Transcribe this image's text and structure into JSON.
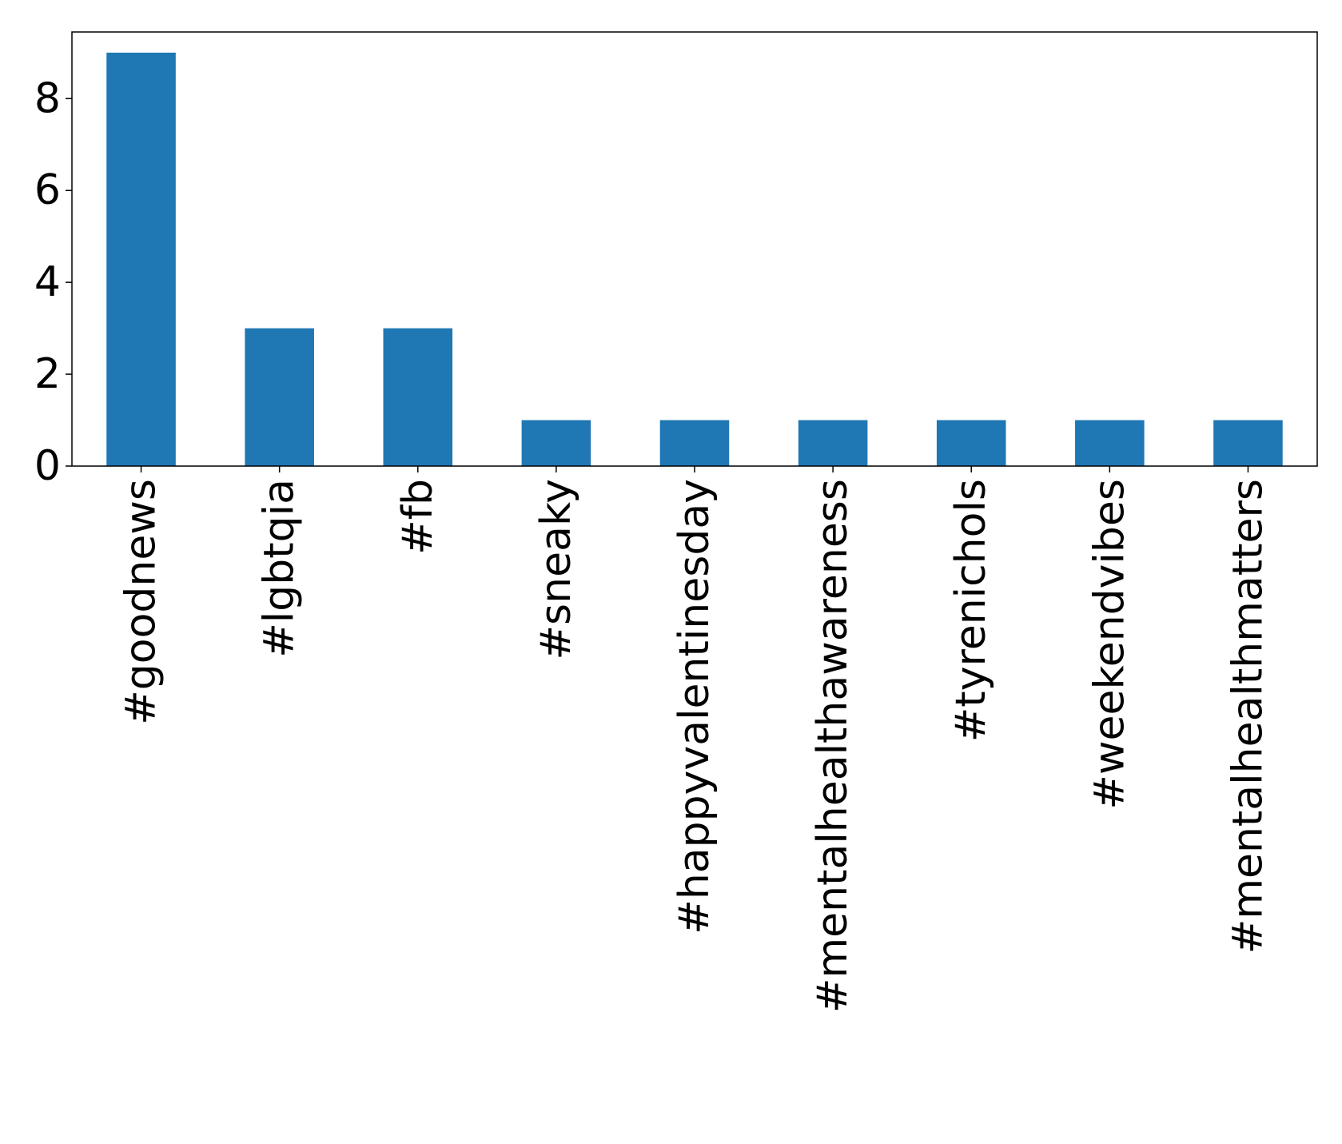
{
  "chart_data": {
    "type": "bar",
    "title": "",
    "xlabel": "",
    "ylabel": "",
    "categories": [
      "#goodnews",
      "#lgbtqia",
      "#fb",
      "#sneaky",
      "#happyvalentinesday",
      "#mentalhealthawareness",
      "#tyrenichols",
      "#weekendvibes",
      "#mentalhealthmatters"
    ],
    "values": [
      9,
      3,
      3,
      1,
      1,
      1,
      1,
      1,
      1
    ],
    "ylim": [
      0,
      9.45
    ],
    "yticks": [
      0,
      2,
      4,
      6,
      8
    ],
    "grid": false,
    "bar_color": "#1f77b4"
  }
}
